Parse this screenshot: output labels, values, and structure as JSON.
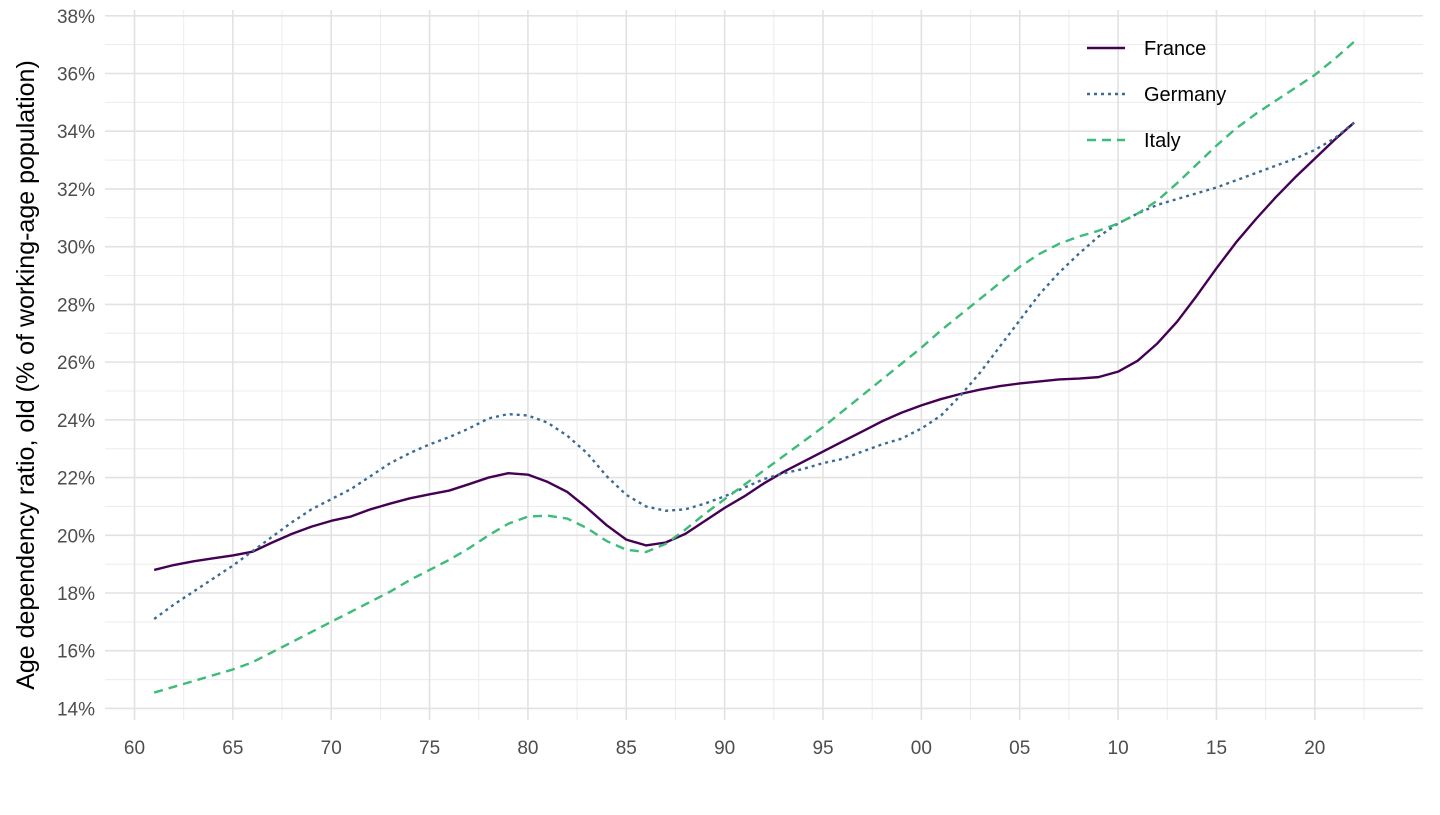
{
  "chart_data": {
    "type": "line",
    "title": "",
    "xlabel": "",
    "ylabel": "Age dependency ratio, old (% of working-age population)",
    "xlim": [
      1958.5,
      2025.5
    ],
    "ylim": [
      13.6,
      38.2
    ],
    "grid": true,
    "legend_position": "top-right",
    "x_ticks": [
      1960,
      1965,
      1970,
      1975,
      1980,
      1985,
      1990,
      1995,
      2000,
      2005,
      2010,
      2015,
      2020
    ],
    "x_tick_labels": [
      "60",
      "65",
      "70",
      "75",
      "80",
      "85",
      "90",
      "95",
      "00",
      "05",
      "10",
      "15",
      "20"
    ],
    "y_ticks": [
      14,
      16,
      18,
      20,
      22,
      24,
      26,
      28,
      30,
      32,
      34,
      36,
      38
    ],
    "y_tick_labels": [
      "14%",
      "16%",
      "18%",
      "20%",
      "22%",
      "24%",
      "26%",
      "28%",
      "30%",
      "32%",
      "34%",
      "36%",
      "38%"
    ],
    "x": [
      1961,
      1962,
      1963,
      1964,
      1965,
      1966,
      1967,
      1968,
      1969,
      1970,
      1971,
      1972,
      1973,
      1974,
      1975,
      1976,
      1977,
      1978,
      1979,
      1980,
      1981,
      1982,
      1983,
      1984,
      1985,
      1986,
      1987,
      1988,
      1989,
      1990,
      1991,
      1992,
      1993,
      1994,
      1995,
      1996,
      1997,
      1998,
      1999,
      2000,
      2001,
      2002,
      2003,
      2004,
      2005,
      2006,
      2007,
      2008,
      2009,
      2010,
      2011,
      2012,
      2013,
      2014,
      2015,
      2016,
      2017,
      2018,
      2019,
      2020,
      2021,
      2022
    ],
    "series": [
      {
        "name": "France",
        "color": "#440154",
        "dash": "solid",
        "values": [
          18.8,
          18.97,
          19.1,
          19.2,
          19.3,
          19.43,
          19.75,
          20.05,
          20.3,
          20.5,
          20.65,
          20.9,
          21.1,
          21.28,
          21.42,
          21.55,
          21.77,
          22.0,
          22.15,
          22.1,
          21.85,
          21.5,
          20.95,
          20.35,
          19.85,
          19.65,
          19.75,
          20.05,
          20.5,
          20.95,
          21.35,
          21.8,
          22.2,
          22.55,
          22.9,
          23.25,
          23.6,
          23.95,
          24.25,
          24.5,
          24.72,
          24.9,
          25.05,
          25.17,
          25.26,
          25.33,
          25.4,
          25.43,
          25.48,
          25.67,
          26.05,
          26.65,
          27.4,
          28.3,
          29.25,
          30.15,
          30.95,
          31.7,
          32.4,
          33.05,
          33.7,
          34.3
        ]
      },
      {
        "name": "Germany",
        "color": "#3b6a92",
        "dash": "dotted",
        "values": [
          17.1,
          17.6,
          18.05,
          18.5,
          18.95,
          19.45,
          19.95,
          20.45,
          20.9,
          21.25,
          21.6,
          22.05,
          22.5,
          22.85,
          23.15,
          23.4,
          23.7,
          24.05,
          24.2,
          24.15,
          23.9,
          23.45,
          22.85,
          22.05,
          21.4,
          21.0,
          20.85,
          20.9,
          21.1,
          21.35,
          21.65,
          21.95,
          22.15,
          22.3,
          22.5,
          22.65,
          22.9,
          23.15,
          23.35,
          23.7,
          24.15,
          24.85,
          25.65,
          26.55,
          27.45,
          28.35,
          29.1,
          29.75,
          30.35,
          30.8,
          31.15,
          31.45,
          31.65,
          31.85,
          32.05,
          32.3,
          32.55,
          32.8,
          33.05,
          33.35,
          33.75,
          34.3
        ]
      },
      {
        "name": "Italy",
        "color": "#3dbb78",
        "dash": "dashed",
        "values": [
          14.55,
          14.75,
          14.95,
          15.15,
          15.35,
          15.6,
          15.95,
          16.3,
          16.65,
          17.0,
          17.35,
          17.7,
          18.05,
          18.45,
          18.8,
          19.15,
          19.55,
          20.0,
          20.4,
          20.65,
          20.68,
          20.58,
          20.25,
          19.8,
          19.5,
          19.42,
          19.7,
          20.2,
          20.75,
          21.25,
          21.75,
          22.25,
          22.75,
          23.25,
          23.75,
          24.3,
          24.85,
          25.4,
          25.95,
          26.5,
          27.1,
          27.65,
          28.2,
          28.75,
          29.3,
          29.75,
          30.1,
          30.35,
          30.55,
          30.8,
          31.15,
          31.6,
          32.2,
          32.85,
          33.5,
          34.1,
          34.6,
          35.05,
          35.5,
          35.95,
          36.5,
          37.1
        ]
      }
    ]
  }
}
